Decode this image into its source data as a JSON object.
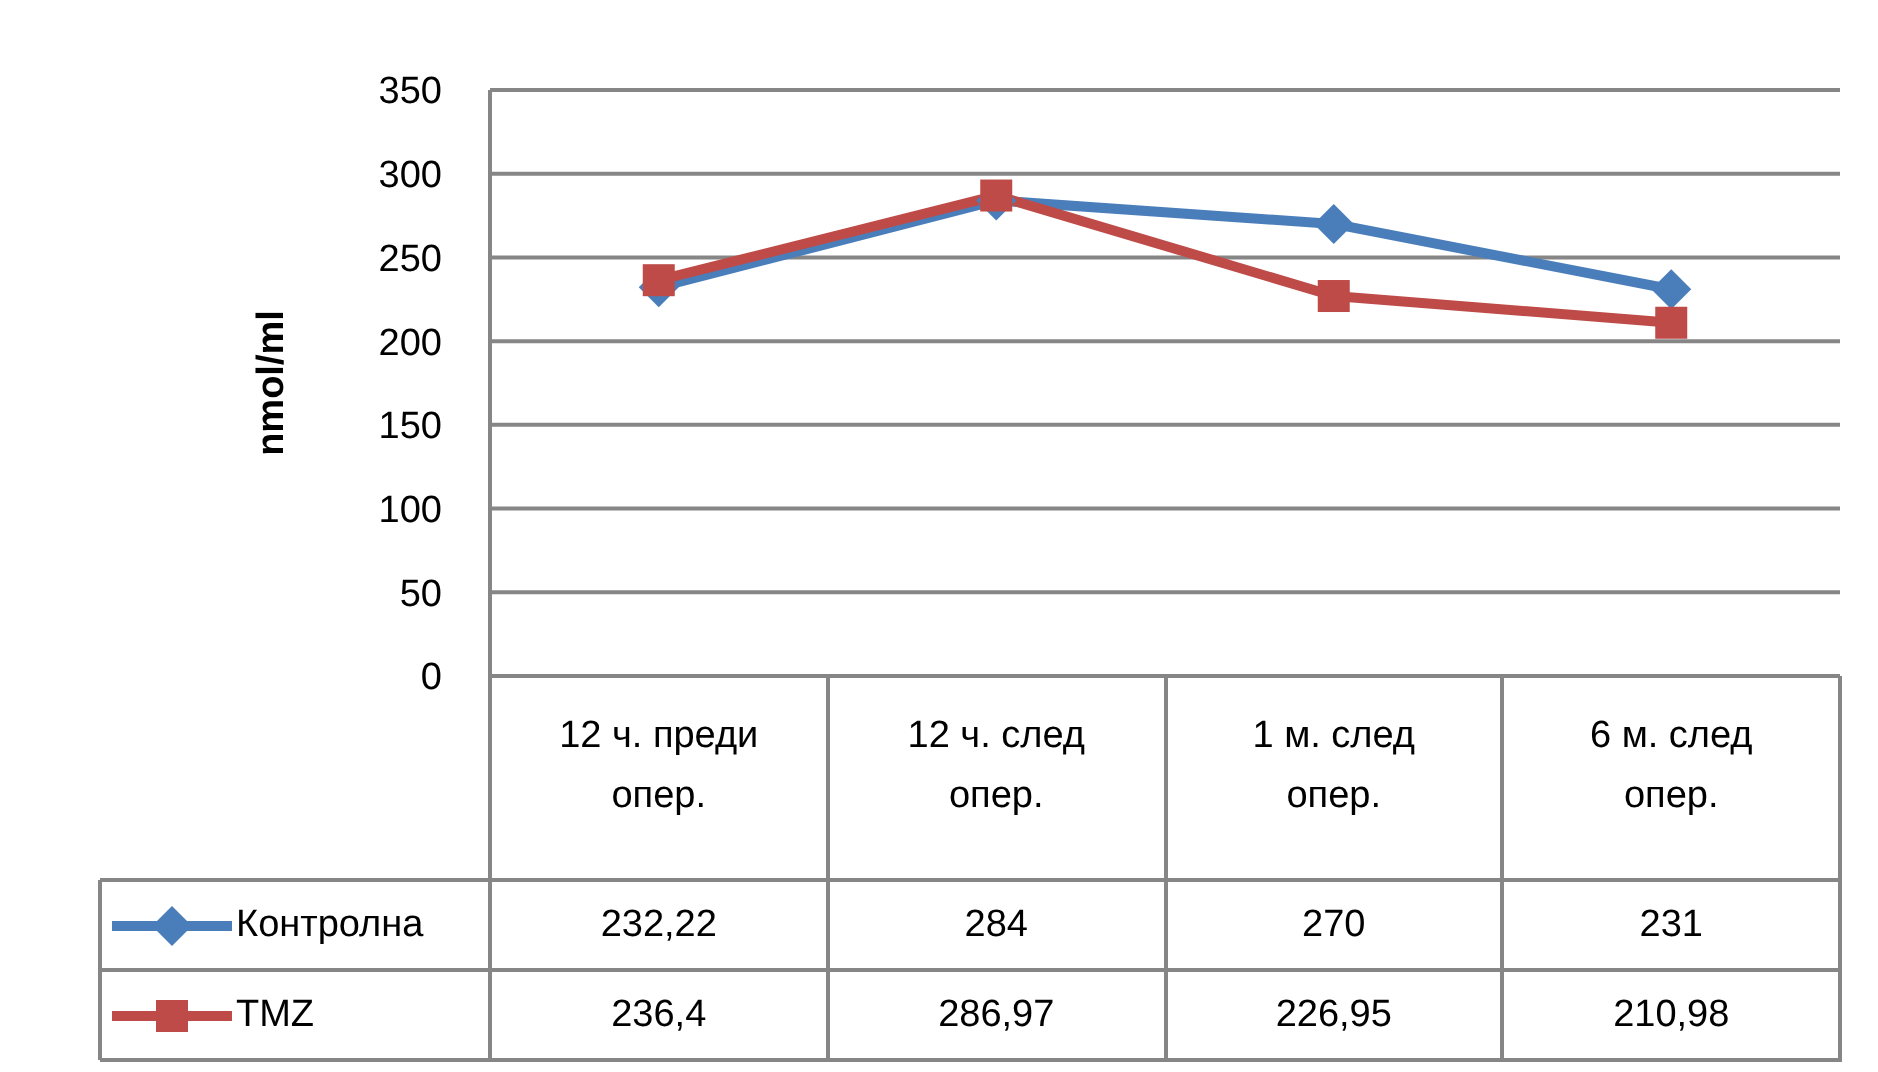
{
  "chart_data": {
    "type": "line",
    "ylabel": "nmol/ml",
    "categories": [
      "12 ч. преди опер.",
      "12 ч. след опер.",
      "1 м. след опер.",
      "6 м. след опер."
    ],
    "series": [
      {
        "name": "Контролна",
        "color": "#4a7ebb",
        "marker": "diamond",
        "values": [
          232.22,
          284,
          270,
          231
        ],
        "value_labels": [
          "232,22",
          "284",
          "270",
          "231"
        ]
      },
      {
        "name": "TMZ",
        "color": "#be4b48",
        "marker": "square",
        "values": [
          236.4,
          286.97,
          226.95,
          210.98
        ],
        "value_labels": [
          "236,4",
          "286,97",
          "226,95",
          "210,98"
        ]
      }
    ],
    "ylim": [
      0,
      350
    ],
    "yticks": [
      0,
      50,
      100,
      150,
      200,
      250,
      300,
      350
    ],
    "grid": "y",
    "legend": "bottom left"
  }
}
